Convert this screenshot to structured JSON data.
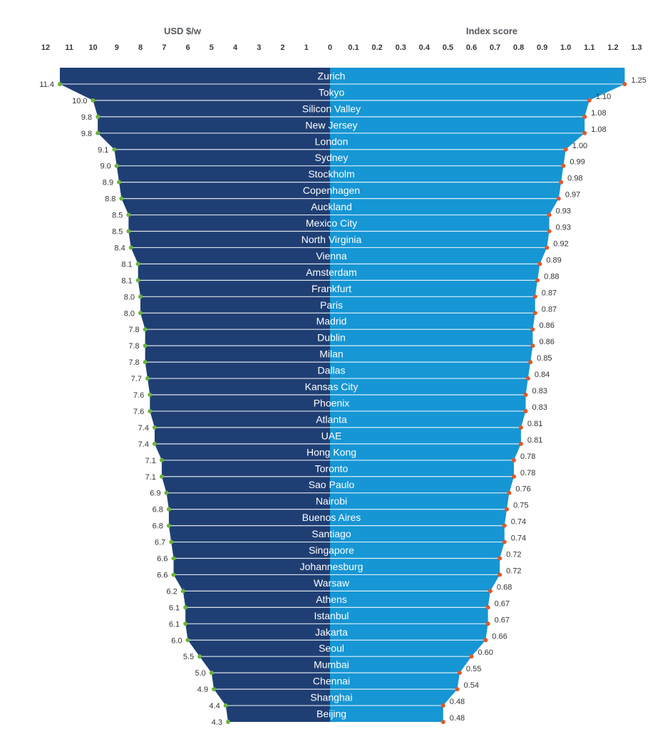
{
  "chart_data": {
    "type": "bar",
    "left_axis": {
      "title": "USD $/w",
      "ticks": [
        "12",
        "11",
        "10",
        "9",
        "8",
        "7",
        "6",
        "5",
        "4",
        "3",
        "2",
        "1",
        "0"
      ],
      "range": [
        0,
        12
      ]
    },
    "right_axis": {
      "title": "Index score",
      "ticks": [
        "0.1",
        "0.2",
        "0.3",
        "0.4",
        "0.5",
        "0.6",
        "0.7",
        "0.8",
        "0.9",
        "1.0",
        "1.1",
        "1.2",
        "1.3"
      ],
      "range": [
        0,
        1.3
      ]
    },
    "colors": {
      "left_fill": "#1f3f74",
      "right_fill": "#1696d4",
      "left_marker": "#6ab23c",
      "right_marker": "#e0582a"
    },
    "categories": [
      "Zurich",
      "Tokyo",
      "Silicon Valley",
      "New Jersey",
      "London",
      "Sydney",
      "Stockholm",
      "Copenhagen",
      "Auckland",
      "Mexico City",
      "North Virginia",
      "Vienna",
      "Amsterdam",
      "Frankfurt",
      "Paris",
      "Madrid",
      "Dublin",
      "Milan",
      "Dallas",
      "Kansas City",
      "Phoenix",
      "Atlanta",
      "UAE",
      "Hong Kong",
      "Toronto",
      "Sao Paulo",
      "Nairobi",
      "Buenos Aires",
      "Santiago",
      "Singapore",
      "Johannesburg",
      "Warsaw",
      "Athens",
      "Istanbul",
      "Jakarta",
      "Seoul",
      "Mumbai",
      "Chennai",
      "Shanghai",
      "Beijing"
    ],
    "series": [
      {
        "axis": "left",
        "values": [
          11.4,
          10.0,
          9.8,
          9.8,
          9.1,
          9.0,
          8.9,
          8.8,
          8.5,
          8.5,
          8.4,
          8.1,
          8.1,
          8.0,
          8.0,
          7.8,
          7.8,
          7.8,
          7.7,
          7.6,
          7.6,
          7.4,
          7.4,
          7.1,
          7.1,
          6.9,
          6.8,
          6.8,
          6.7,
          6.6,
          6.6,
          6.2,
          6.1,
          6.1,
          6.0,
          5.5,
          5.0,
          4.9,
          4.4,
          4.3
        ],
        "labels": [
          "11.4",
          "10.0",
          "9.8",
          "9.8",
          "9.1",
          "9.0",
          "8.9",
          "8.8",
          "8.5",
          "8.5",
          "8.4",
          "8.1",
          "8.1",
          "8.0",
          "8.0",
          "7.8",
          "7.8",
          "7.8",
          "7.7",
          "7.6",
          "7.6",
          "7.4",
          "7.4",
          "7.1",
          "7.1",
          "6.9",
          "6.8",
          "6.8",
          "6.7",
          "6.6",
          "6.6",
          "6.2",
          "6.1",
          "6.1",
          "6.0",
          "5.5",
          "5.0",
          "4.9",
          "4.4",
          "4.3"
        ]
      },
      {
        "axis": "right",
        "values": [
          1.25,
          1.1,
          1.08,
          1.08,
          1.0,
          0.99,
          0.98,
          0.97,
          0.93,
          0.93,
          0.92,
          0.89,
          0.88,
          0.87,
          0.87,
          0.86,
          0.86,
          0.85,
          0.84,
          0.83,
          0.83,
          0.81,
          0.81,
          0.78,
          0.78,
          0.76,
          0.75,
          0.74,
          0.74,
          0.72,
          0.72,
          0.68,
          0.67,
          0.67,
          0.66,
          0.6,
          0.55,
          0.54,
          0.48,
          0.48
        ],
        "labels": [
          "1.25",
          "1.10",
          "1.08",
          "1.08",
          "1.00",
          "0.99",
          "0.98",
          "0.97",
          "0.93",
          "0.93",
          "0.92",
          "0.89",
          "0.88",
          "0.87",
          "0.87",
          "0.86",
          "0.86",
          "0.85",
          "0.84",
          "0.83",
          "0.83",
          "0.81",
          "0.81",
          "0.78",
          "0.78",
          "0.76",
          "0.75",
          "0.74",
          "0.74",
          "0.72",
          "0.72",
          "0.68",
          "0.67",
          "0.67",
          "0.66",
          "0.60",
          "0.55",
          "0.54",
          "0.48",
          "0.48"
        ]
      }
    ]
  }
}
